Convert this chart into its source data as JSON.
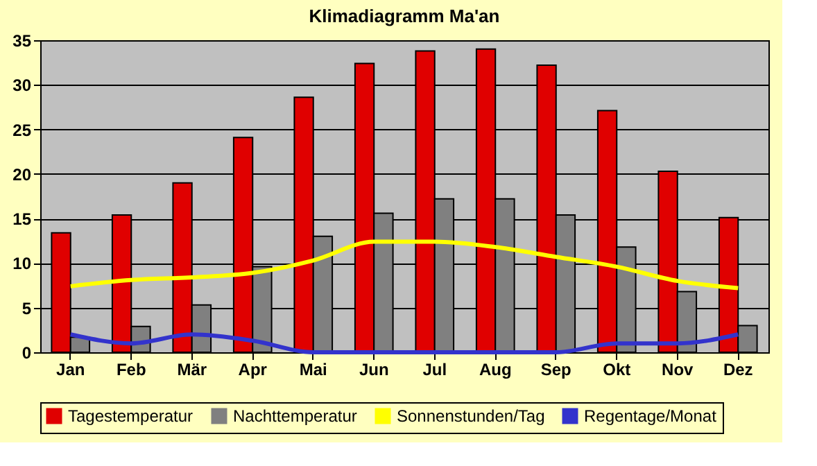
{
  "chart_data": {
    "type": "bar",
    "title": "Klimadiagramm Ma'an",
    "categories": [
      "Jan",
      "Feb",
      "Mär",
      "Apr",
      "Mai",
      "Jun",
      "Jul",
      "Aug",
      "Sep",
      "Okt",
      "Nov",
      "Dez"
    ],
    "series": [
      {
        "name": "Tagestemperatur",
        "color": "#e00000",
        "values": [
          13.4,
          15.4,
          19,
          24.1,
          28.6,
          32.4,
          33.8,
          34,
          32.2,
          27.1,
          20.3,
          15.1
        ]
      },
      {
        "name": "Nachttemperatur",
        "color": "#808080",
        "values": [
          1.7,
          2.9,
          5.3,
          9.6,
          13,
          15.6,
          17.2,
          17.2,
          15.4,
          11.8,
          6.8,
          3.0
        ]
      },
      {
        "name": "Sonnenstunden/Tag",
        "type": "line",
        "color": "#ffff00",
        "values": [
          7.4,
          8.1,
          8.4,
          8.9,
          10.3,
          12.4,
          12.4,
          11.8,
          10.7,
          9.6,
          8.0,
          7.2
        ]
      },
      {
        "name": "Regentage/Monat",
        "type": "line",
        "color": "#3333cc",
        "values": [
          2,
          1,
          2,
          1.3,
          0,
          0,
          0,
          0,
          0,
          1,
          1,
          2
        ]
      }
    ],
    "ylim": [
      0,
      35
    ],
    "yticks": [
      0,
      5,
      10,
      15,
      20,
      25,
      30,
      35
    ],
    "grid": "y",
    "legend": "bottom",
    "marker": "none",
    "line_style": "solid"
  }
}
